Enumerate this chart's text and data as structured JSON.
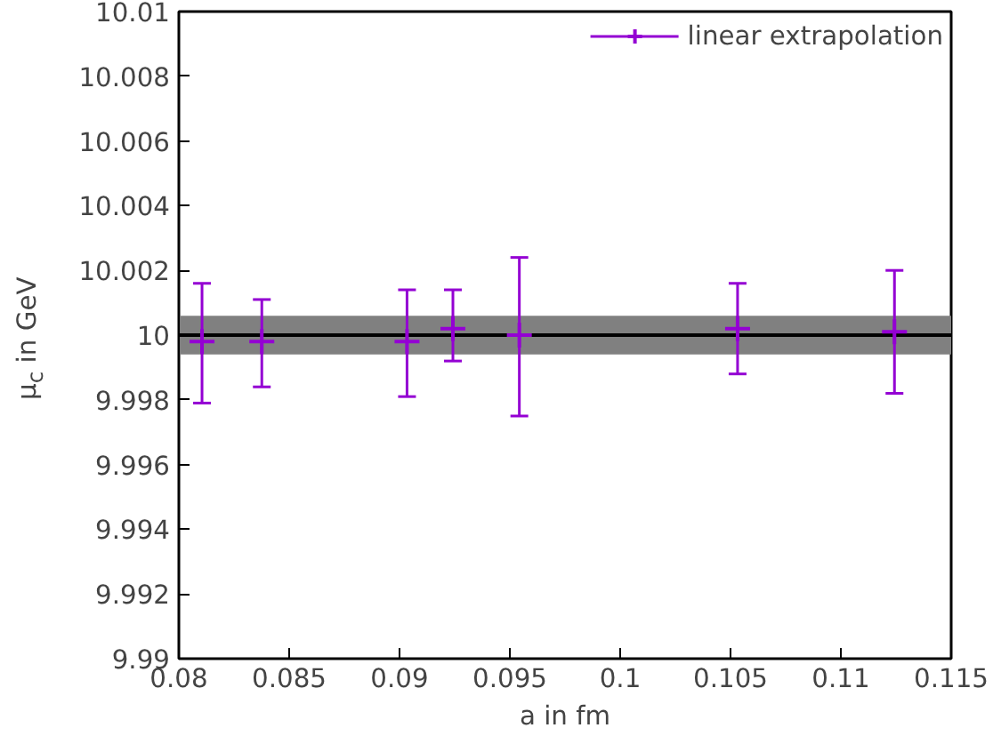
{
  "chart_data": {
    "type": "scatter",
    "xlabel": "a in fm",
    "ylabel": "μ$_{c}$ in GeV",
    "series": [
      {
        "name": "linear extrapolation",
        "color": "#9400d3",
        "x": [
          0.08105,
          0.08376,
          0.09034,
          0.09242,
          0.09543,
          0.10532,
          0.11243
        ],
        "values": [
          9.9998,
          9.9998,
          9.9998,
          10.0002,
          10.0,
          10.0002,
          10.0001
        ],
        "errors": [
          [
            9.9979,
            10.0016
          ],
          [
            9.9984,
            10.0011
          ],
          [
            9.9981,
            10.0014
          ],
          [
            9.9992,
            10.0014
          ],
          [
            9.9975,
            10.0024
          ],
          [
            9.9988,
            10.0016
          ],
          [
            9.9982,
            10.002
          ]
        ]
      }
    ],
    "bands": [
      {
        "axis": "y",
        "from": 9.9994,
        "to": 10.0006,
        "color": "#808080"
      }
    ],
    "ref_lines": [
      {
        "axis": "y",
        "value": 10.0,
        "color": "#000000"
      }
    ],
    "marker": "cross",
    "legend": "top right",
    "grid": false,
    "xlim": [
      0.08,
      0.115
    ],
    "xticks": [
      0.08,
      0.085,
      0.09,
      0.095,
      0.1,
      0.105,
      0.11,
      0.115
    ],
    "ylim": [
      9.99,
      10.01
    ],
    "yticks": [
      9.99,
      9.992,
      9.994,
      9.996,
      9.998,
      10,
      10.002,
      10.004,
      10.006,
      10.008,
      10.01
    ]
  }
}
